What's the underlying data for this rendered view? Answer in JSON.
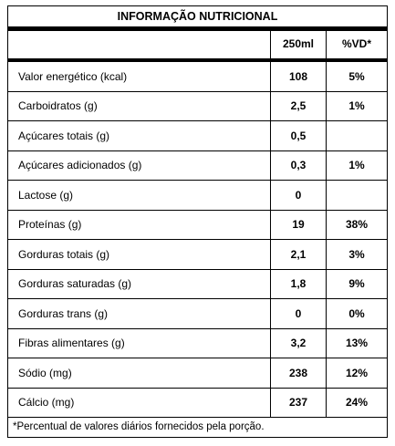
{
  "title": "INFORMAÇÃO NUTRICIONAL",
  "header": {
    "col_portion": "250ml",
    "col_vd": "%VD*"
  },
  "rows": [
    {
      "name": "Valor energético (kcal)",
      "amount": "108",
      "vd": "5%"
    },
    {
      "name": "Carboidratos (g)",
      "amount": "2,5",
      "vd": "1%"
    },
    {
      "name": "Açúcares totais (g)",
      "amount": "0,5",
      "vd": ""
    },
    {
      "name": "Açúcares adicionados (g)",
      "amount": "0,3",
      "vd": "1%"
    },
    {
      "name": "Lactose (g)",
      "amount": "0",
      "vd": ""
    },
    {
      "name": "Proteínas (g)",
      "amount": "19",
      "vd": "38%"
    },
    {
      "name": "Gorduras totais (g)",
      "amount": "2,1",
      "vd": "3%"
    },
    {
      "name": "Gorduras saturadas (g)",
      "amount": "1,8",
      "vd": "9%"
    },
    {
      "name": "Gorduras trans (g)",
      "amount": "0",
      "vd": "0%"
    },
    {
      "name": "Fibras alimentares (g)",
      "amount": "3,2",
      "vd": "13%"
    },
    {
      "name": "Sódio (mg)",
      "amount": "238",
      "vd": "12%"
    },
    {
      "name": "Cálcio (mg)",
      "amount": "237",
      "vd": "24%"
    }
  ],
  "footnote": "*Percentual de valores diários fornecidos pela porção."
}
